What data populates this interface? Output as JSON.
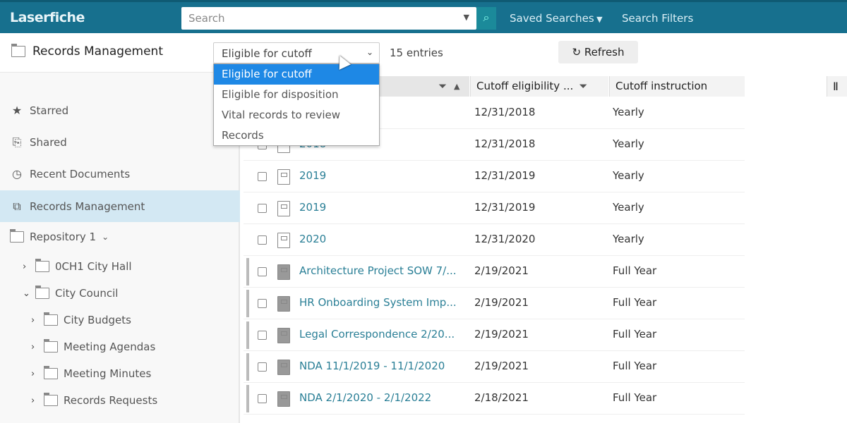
{
  "header": {
    "logo": "Laserfiche",
    "search_placeholder": "Search",
    "saved_searches": "Saved Searches",
    "search_filters": "Search Filters",
    "accent": "#17708e"
  },
  "toolbar": {
    "title": "Records Management",
    "selected_view": "Eligible for cutoff",
    "entries": "15 entries",
    "refresh": "Refresh"
  },
  "dropdown": {
    "options": [
      "Eligible for cutoff",
      "Eligible for disposition",
      "Vital records to review",
      "Records"
    ],
    "selected_index": 0
  },
  "sidebar": {
    "items": [
      {
        "label": "Starred",
        "icon": "star-icon"
      },
      {
        "label": "Shared",
        "icon": "shared-icon"
      },
      {
        "label": "Recent Documents",
        "icon": "clock-icon"
      },
      {
        "label": "Records Management",
        "icon": "records-icon",
        "active": true
      }
    ],
    "tree": [
      {
        "label": "Repository 1",
        "expanded": true
      },
      {
        "label": "0CH1 City Hall",
        "expanded": false
      },
      {
        "label": "City Council",
        "expanded": true
      },
      {
        "label": "City Budgets"
      },
      {
        "label": "Meeting Agendas"
      },
      {
        "label": "Meeting Minutes"
      },
      {
        "label": "Records Requests"
      }
    ]
  },
  "table": {
    "columns": [
      "Cutoff eligibility ...",
      "Cutoff instruction"
    ],
    "rows": [
      {
        "name": "",
        "date": "12/31/2018",
        "instruction": "Yearly",
        "type": "folder"
      },
      {
        "name": "2018",
        "date": "12/31/2018",
        "instruction": "Yearly",
        "type": "folder"
      },
      {
        "name": "2019",
        "date": "12/31/2019",
        "instruction": "Yearly",
        "type": "folder"
      },
      {
        "name": "2019",
        "date": "12/31/2019",
        "instruction": "Yearly",
        "type": "folder"
      },
      {
        "name": "2020",
        "date": "12/31/2020",
        "instruction": "Yearly",
        "type": "folder"
      },
      {
        "name": "Architecture Project SOW 7/...",
        "date": "2/19/2021",
        "instruction": "Full Year",
        "type": "document"
      },
      {
        "name": "HR Onboarding System Imp...",
        "date": "2/19/2021",
        "instruction": "Full Year",
        "type": "document"
      },
      {
        "name": "Legal Correspondence 2/20...",
        "date": "2/19/2021",
        "instruction": "Full Year",
        "type": "document"
      },
      {
        "name": "NDA 11/1/2019 - 11/1/2020",
        "date": "2/19/2021",
        "instruction": "Full Year",
        "type": "document"
      },
      {
        "name": "NDA 2/1/2020 - 2/1/2022",
        "date": "2/18/2021",
        "instruction": "Full Year",
        "type": "document"
      }
    ]
  }
}
